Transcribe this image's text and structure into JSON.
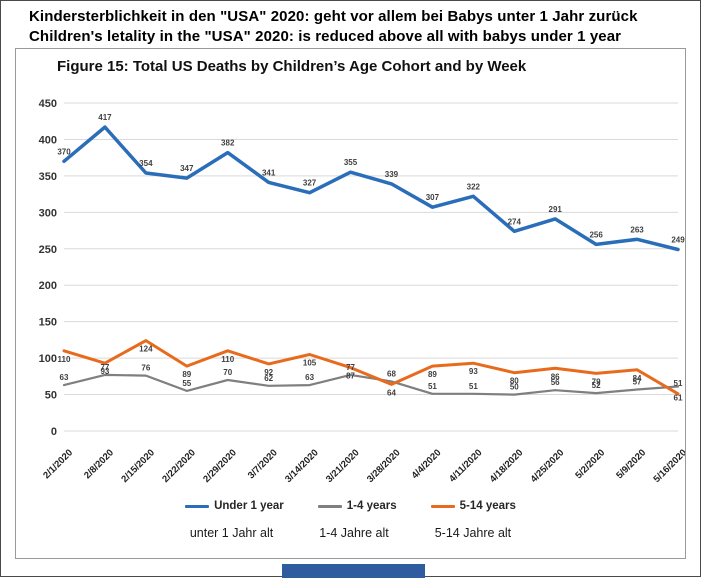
{
  "header": {
    "title_de": "Kindersterblichkeit in den \"USA\" 2020: geht vor allem bei Babys unter 1 Jahr zurück",
    "title_en": "Children's letality in the \"USA\" 2020: is reduced above all with babys under 1 year"
  },
  "chart_data": {
    "type": "line",
    "title": "Figure 15: Total US Deaths by Children’s Age Cohort and by Week",
    "categories": [
      "2/1/2020",
      "2/8/2020",
      "2/15/2020",
      "2/22/2020",
      "2/29/2020",
      "3/7/2020",
      "3/14/2020",
      "3/21/2020",
      "3/28/2020",
      "4/4/2020",
      "4/11/2020",
      "4/18/2020",
      "4/25/2020",
      "5/2/2020",
      "5/9/2020",
      "5/16/2020"
    ],
    "series": [
      {
        "name": "Under 1 year",
        "name_de": "unter 1 Jahr alt",
        "color": "#2a6db8",
        "values": [
          370,
          417,
          354,
          347,
          382,
          341,
          327,
          355,
          339,
          307,
          322,
          274,
          291,
          256,
          263,
          249
        ]
      },
      {
        "name": "1-4 years",
        "name_de": "1-4 Jahre alt",
        "color": "#7f7f7f",
        "values": [
          63,
          77,
          76,
          55,
          70,
          62,
          63,
          77,
          68,
          51,
          51,
          50,
          56,
          52,
          57,
          61
        ]
      },
      {
        "name": "5-14 years",
        "name_de": "5-14 Jahre alt",
        "color": "#e86a1c",
        "values": [
          110,
          93,
          124,
          89,
          110,
          92,
          105,
          87,
          64,
          89,
          93,
          80,
          86,
          79,
          84,
          51
        ]
      }
    ],
    "ylim": [
      0,
      450
    ],
    "ytick_step": 50,
    "grid": true,
    "legend_position": "bottom",
    "x_label_rotation_deg": -45
  },
  "colors": {
    "grid": "#d9d9d9",
    "axis_text": "#333333",
    "data_label": "#3f3f3f",
    "panel_border": "#9a9a9a",
    "frame_border": "#4a4a4a",
    "bottom_bar": "#2e5c9e"
  }
}
